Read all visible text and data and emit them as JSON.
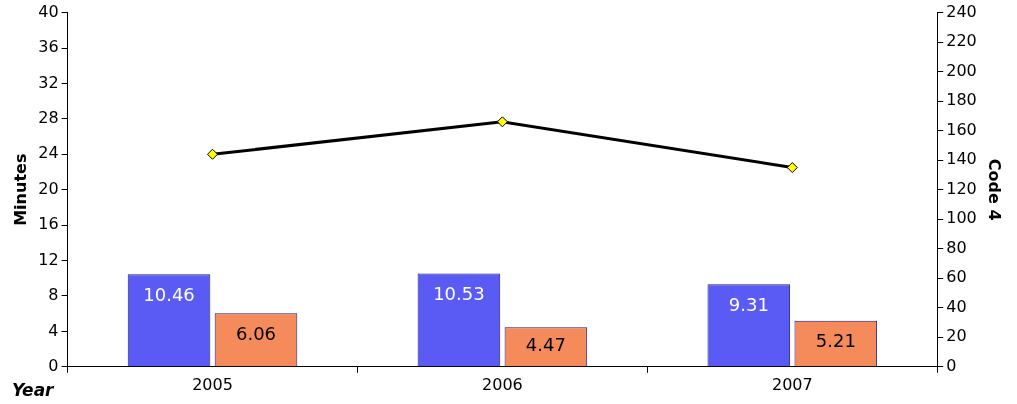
{
  "chart_data": {
    "type": "bar",
    "categories": [
      "2005",
      "2006",
      "2007"
    ],
    "xlabel": "Year",
    "ylabel": "Minutes",
    "y2label": "Code 4",
    "series": [
      {
        "color": "#5a5af5",
        "values": [
          10.46,
          10.53,
          9.31
        ],
        "value_labels": [
          "10.46",
          "10.53",
          "9.31"
        ]
      },
      {
        "color": "#f58a5a",
        "values": [
          6.06,
          4.47,
          5.21
        ],
        "value_labels": [
          "6.06",
          "4.47",
          "5.21"
        ]
      },
      {
        "type": "line",
        "color": "#000000",
        "axis": "y2",
        "values": [
          144,
          166,
          135
        ]
      }
    ],
    "ylim": [
      0,
      40
    ],
    "yticks": [
      0,
      4,
      8,
      12,
      16,
      20,
      24,
      28,
      32,
      36,
      40
    ],
    "y2lim": [
      0,
      240
    ],
    "y2ticks": [
      0,
      20,
      40,
      60,
      80,
      100,
      120,
      140,
      160,
      180,
      200,
      220,
      240
    ],
    "grid": false,
    "legend": false,
    "marker": "diamond",
    "line_style": "solid"
  }
}
